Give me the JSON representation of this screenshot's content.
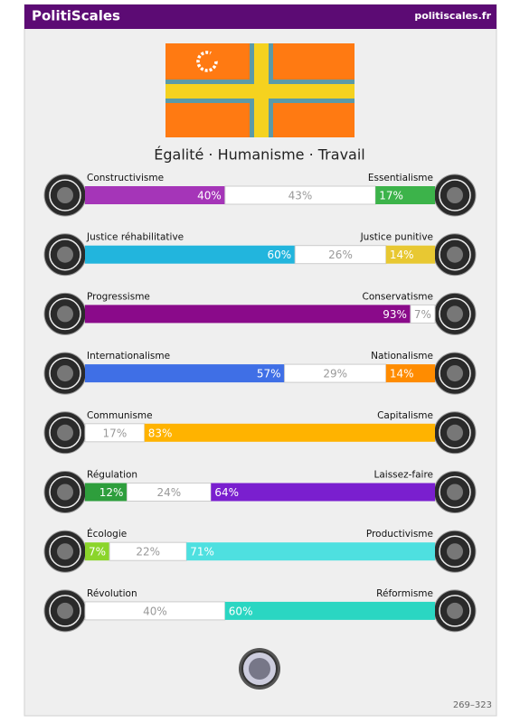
{
  "header": {
    "title": "PolitiScales",
    "site": "politiscales.fr"
  },
  "slogan": "Égalité · Humanisme · Travail",
  "axes": [
    {
      "left": "Constructivisme",
      "right": "Essentialisme",
      "segments": [
        {
          "value": 40,
          "label": "40%",
          "color": "#a535b8"
        },
        {
          "value": 43,
          "label": "43%",
          "color": "#ffffff"
        },
        {
          "value": 17,
          "label": "17%",
          "color": "#3cb34a"
        }
      ]
    },
    {
      "left": "Justice réhabilitative",
      "right": "Justice punitive",
      "segments": [
        {
          "value": 60,
          "label": "60%",
          "color": "#22b5dd"
        },
        {
          "value": 26,
          "label": "26%",
          "color": "#ffffff"
        },
        {
          "value": 14,
          "label": "14%",
          "color": "#e8c832"
        }
      ]
    },
    {
      "left": "Progressisme",
      "right": "Conservatisme",
      "segments": [
        {
          "value": 93,
          "label": "93%",
          "color": "#8a0a8a"
        },
        {
          "value": 7,
          "label": "7%",
          "color": "#ffffff"
        }
      ]
    },
    {
      "left": "Internationalisme",
      "right": "Nationalisme",
      "segments": [
        {
          "value": 57,
          "label": "57%",
          "color": "#3f6fe6"
        },
        {
          "value": 29,
          "label": "29%",
          "color": "#ffffff"
        },
        {
          "value": 14,
          "label": "14%",
          "color": "#ff8c00"
        }
      ]
    },
    {
      "left": "Communisme",
      "right": "Capitalisme",
      "segments": [
        {
          "value": 17,
          "label": "17%",
          "color": "#ffffff"
        },
        {
          "value": 83,
          "label": "83%",
          "color": "#ffb300"
        }
      ]
    },
    {
      "left": "Régulation",
      "right": "Laissez-faire",
      "segments": [
        {
          "value": 12,
          "label": "12%",
          "color": "#2e9e3c"
        },
        {
          "value": 24,
          "label": "24%",
          "color": "#ffffff"
        },
        {
          "value": 64,
          "label": "64%",
          "color": "#7a1fcf"
        }
      ]
    },
    {
      "left": "Écologie",
      "right": "Productivisme",
      "segments": [
        {
          "value": 7,
          "label": "7%",
          "color": "#8bd52b"
        },
        {
          "value": 22,
          "label": "22%",
          "color": "#ffffff"
        },
        {
          "value": 71,
          "label": "71%",
          "color": "#4ee0e0"
        }
      ]
    },
    {
      "left": "Révolution",
      "right": "Réformisme",
      "segments": [
        {
          "value": 40,
          "label": "40%",
          "color": "#ffffff"
        },
        {
          "value": 60,
          "label": "60%",
          "color": "#2ad6c2"
        }
      ]
    }
  ],
  "footer": {
    "code": "269–323"
  }
}
